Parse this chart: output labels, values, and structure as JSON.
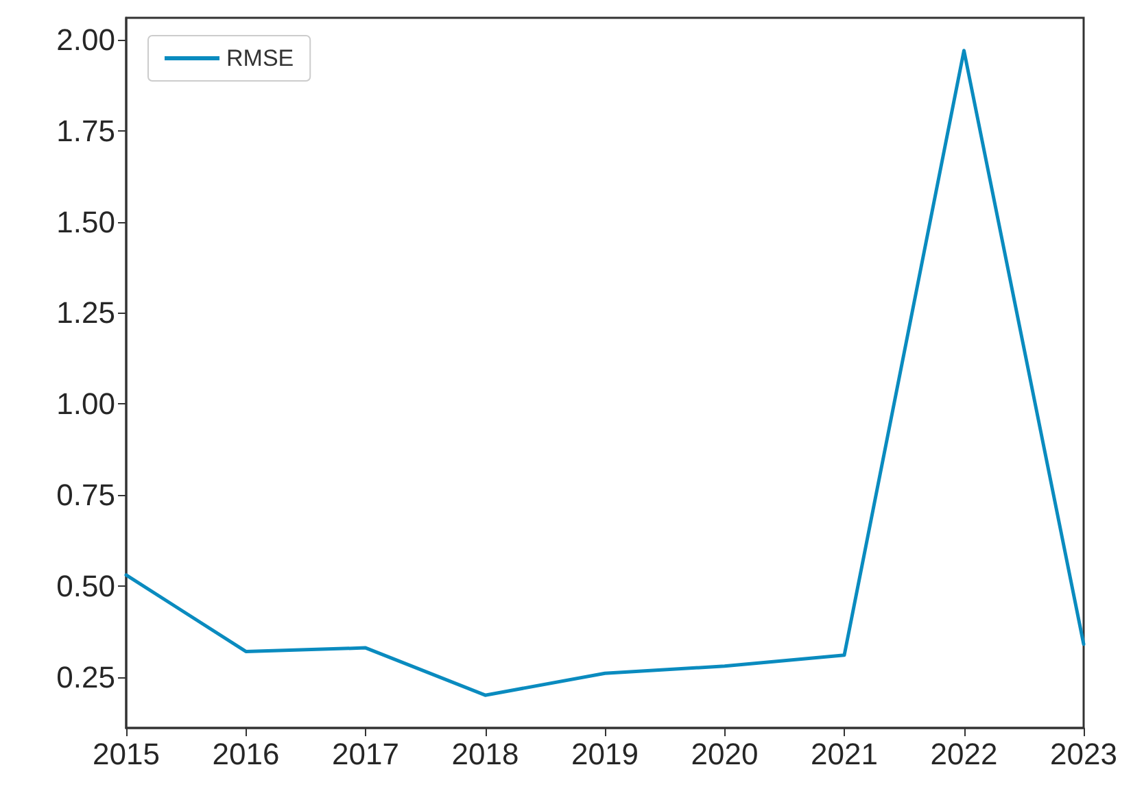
{
  "chart_data": {
    "type": "line",
    "x": [
      2015,
      2016,
      2017,
      2018,
      2019,
      2020,
      2021,
      2022,
      2023
    ],
    "series": [
      {
        "name": "RMSE",
        "color": "#0a8bbf",
        "values": [
          0.53,
          0.32,
          0.33,
          0.2,
          0.26,
          0.28,
          0.31,
          1.97,
          0.34
        ]
      }
    ],
    "xlim": [
      2015,
      2023
    ],
    "xticks": [
      2015,
      2016,
      2017,
      2018,
      2019,
      2020,
      2021,
      2022,
      2023
    ],
    "ylim": [
      0.11,
      2.06
    ],
    "yticks": [
      {
        "value": 0.25,
        "label": "0.25"
      },
      {
        "value": 0.5,
        "label": "0.50"
      },
      {
        "value": 0.75,
        "label": "0.75"
      },
      {
        "value": 1,
        "label": "1.00"
      },
      {
        "value": 1.25,
        "label": "1.25"
      },
      {
        "value": 1.5,
        "label": "1.50"
      },
      {
        "value": 1.75,
        "label": "1.75"
      },
      {
        "value": 2,
        "label": "2.00"
      }
    ],
    "grid": false,
    "legend": "top left",
    "marker": "none",
    "line_style": "solid"
  }
}
